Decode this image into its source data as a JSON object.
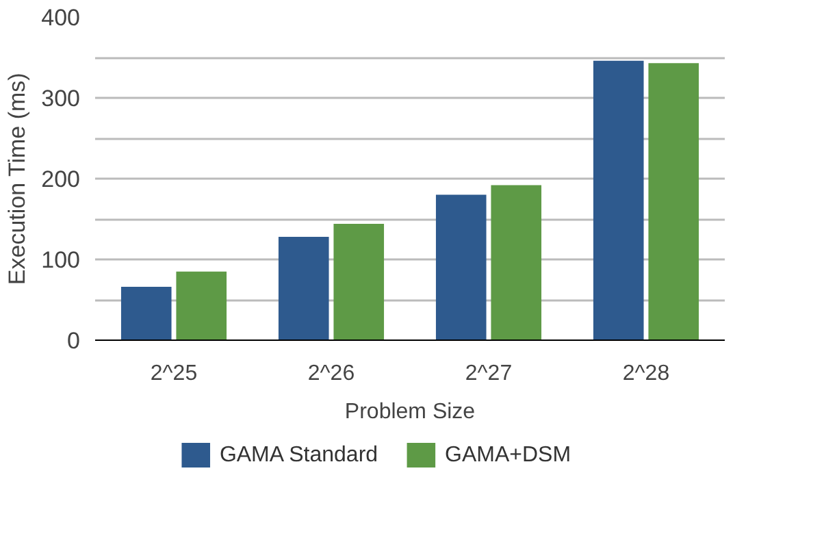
{
  "chart_data": {
    "type": "bar",
    "xlabel": "Problem Size",
    "ylabel": "Execution Time (ms)",
    "categories": [
      "2^25",
      "2^26",
      "2^27",
      "2^28"
    ],
    "series": [
      {
        "name": "GAMA Standard",
        "color": "#2e5a8e",
        "values": [
          66,
          128,
          180,
          346
        ]
      },
      {
        "name": "GAMA+DSM",
        "color": "#5e9a46",
        "values": [
          85,
          144,
          192,
          343
        ]
      }
    ],
    "ylim": [
      0,
      400
    ],
    "yticks": [
      0,
      {
        "value": 50,
        "label": null
      },
      100,
      {
        "value": 150,
        "label": null
      },
      200,
      {
        "value": 250,
        "label": null
      },
      300,
      {
        "value": 350,
        "label": null
      },
      400
    ],
    "grid": "y",
    "legend": "bottom"
  }
}
